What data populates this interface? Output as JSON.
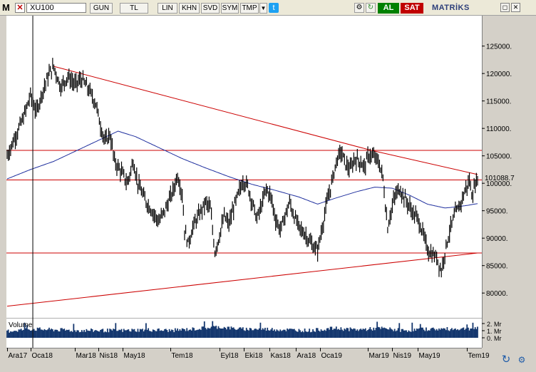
{
  "toolbar": {
    "menu_letter": "M",
    "close_glyph": "✕",
    "symbol": "XU100",
    "buttons": [
      "GUN",
      "TL",
      "LIN",
      "KHN",
      "SVD",
      "SYM",
      "TMP"
    ],
    "dropdown_glyph": "▼",
    "twitter_glyph": "t",
    "tool_glyphs": [
      "⚙",
      "↻",
      "📞"
    ],
    "buy_label": "AL",
    "sell_label": "SAT",
    "brand": "MATRİKS",
    "window_glyphs": [
      "◻",
      "✕"
    ]
  },
  "colors": {
    "background": "#ffffff",
    "price": "#000000",
    "moving_average": "#1f2f9e",
    "trendline": "#cc0000",
    "volume": "#14376e",
    "axis": "#d4d0c8"
  },
  "icons": {
    "refresh": "refresh-icon",
    "settings": "gear-icon"
  },
  "chart_data": {
    "type": "line",
    "price_axis": {
      "ticks": [
        "125000.",
        "120000.",
        "115000.",
        "110000.",
        "105000.",
        "100000.",
        "95000.",
        "90000.",
        "85000.",
        "80000."
      ],
      "tick_values": [
        125000,
        120000,
        115000,
        110000,
        105000,
        100000,
        95000,
        90000,
        85000,
        80000
      ],
      "ylim": [
        76000,
        129500
      ],
      "last_value_label": "101088.7",
      "last_value": 101088.7
    },
    "volume_axis": {
      "title": "Volume",
      "ticks": [
        "2. Mr",
        "1. Mr",
        "0. Mr"
      ],
      "tick_values": [
        2,
        1,
        0
      ],
      "ylim": [
        0,
        2.4
      ]
    },
    "x_axis": {
      "labels": [
        "Ara17",
        "Oca18",
        "Mar18",
        "Nis18",
        "May18",
        "Tem18",
        "Eyl18",
        "Eki18",
        "Kas18",
        "Ara18",
        "Oca19",
        "Mar19",
        "Nis19",
        "May19",
        "Tem19"
      ],
      "label_index": [
        0,
        20,
        58,
        78,
        99,
        140,
        182,
        203,
        225,
        247,
        268,
        309,
        330,
        352,
        394
      ],
      "total_bars": 404
    },
    "price_anchors": [
      [
        0,
        105000
      ],
      [
        3,
        106500
      ],
      [
        8,
        109000
      ],
      [
        14,
        112000
      ],
      [
        20,
        116000
      ],
      [
        25,
        113000
      ],
      [
        30,
        116500
      ],
      [
        36,
        120000
      ],
      [
        40,
        121200
      ],
      [
        46,
        117500
      ],
      [
        52,
        119500
      ],
      [
        58,
        118000
      ],
      [
        64,
        119000
      ],
      [
        70,
        117000
      ],
      [
        76,
        114500
      ],
      [
        80,
        110500
      ],
      [
        84,
        107500
      ],
      [
        88,
        109000
      ],
      [
        92,
        104000
      ],
      [
        98,
        102000
      ],
      [
        103,
        100000
      ],
      [
        108,
        104000
      ],
      [
        112,
        100000
      ],
      [
        118,
        97000
      ],
      [
        124,
        95000
      ],
      [
        130,
        93000
      ],
      [
        136,
        95500
      ],
      [
        142,
        98500
      ],
      [
        146,
        101500
      ],
      [
        150,
        98000
      ],
      [
        152,
        91500
      ],
      [
        155,
        89000
      ],
      [
        160,
        92500
      ],
      [
        165,
        94500
      ],
      [
        170,
        96500
      ],
      [
        174,
        95500
      ],
      [
        178,
        87500
      ],
      [
        182,
        90500
      ],
      [
        186,
        94000
      ],
      [
        190,
        92500
      ],
      [
        194,
        95500
      ],
      [
        198,
        98000
      ],
      [
        202,
        100500
      ],
      [
        206,
        99500
      ],
      [
        210,
        96500
      ],
      [
        214,
        93500
      ],
      [
        218,
        96000
      ],
      [
        222,
        99000
      ],
      [
        226,
        97500
      ],
      [
        230,
        93500
      ],
      [
        234,
        91500
      ],
      [
        238,
        94000
      ],
      [
        242,
        96500
      ],
      [
        245,
        94500
      ],
      [
        250,
        92000
      ],
      [
        256,
        90500
      ],
      [
        262,
        88500
      ],
      [
        266,
        87800
      ],
      [
        270,
        92000
      ],
      [
        274,
        96500
      ],
      [
        278,
        100000
      ],
      [
        282,
        104000
      ],
      [
        286,
        105800
      ],
      [
        290,
        103500
      ],
      [
        294,
        102500
      ],
      [
        298,
        104500
      ],
      [
        302,
        104000
      ],
      [
        306,
        103000
      ],
      [
        310,
        105200
      ],
      [
        314,
        104800
      ],
      [
        318,
        104000
      ],
      [
        322,
        101000
      ],
      [
        324,
        96000
      ],
      [
        326,
        92000
      ],
      [
        328,
        94000
      ],
      [
        332,
        97500
      ],
      [
        336,
        99000
      ],
      [
        340,
        97500
      ],
      [
        344,
        96000
      ],
      [
        348,
        94500
      ],
      [
        352,
        93500
      ],
      [
        356,
        91000
      ],
      [
        360,
        88000
      ],
      [
        364,
        87000
      ],
      [
        368,
        86500
      ],
      [
        372,
        84000
      ],
      [
        376,
        88500
      ],
      [
        380,
        92000
      ],
      [
        384,
        94500
      ],
      [
        388,
        96000
      ],
      [
        392,
        98500
      ],
      [
        396,
        100500
      ],
      [
        398,
        98000
      ],
      [
        400,
        99000
      ],
      [
        403,
        101088.7
      ]
    ],
    "moving_average_anchors": [
      [
        0,
        100800
      ],
      [
        20,
        102500
      ],
      [
        40,
        104000
      ],
      [
        60,
        106000
      ],
      [
        80,
        108000
      ],
      [
        95,
        109500
      ],
      [
        110,
        108500
      ],
      [
        130,
        106500
      ],
      [
        150,
        104500
      ],
      [
        170,
        102800
      ],
      [
        190,
        101200
      ],
      [
        210,
        99800
      ],
      [
        230,
        98700
      ],
      [
        250,
        97500
      ],
      [
        266,
        96200
      ],
      [
        280,
        97200
      ],
      [
        300,
        98500
      ],
      [
        315,
        99300
      ],
      [
        330,
        99100
      ],
      [
        345,
        97800
      ],
      [
        360,
        96200
      ],
      [
        375,
        95500
      ],
      [
        385,
        95700
      ],
      [
        395,
        96000
      ],
      [
        403,
        96300
      ]
    ],
    "horizontal_lines": [
      106000,
      100600,
      87300
    ],
    "trendlines": [
      {
        "from": [
          40,
          121300
        ],
        "to": [
          312,
          106000
        ]
      },
      {
        "from": [
          312,
          106000
        ],
        "to": [
          403,
          101600
        ]
      },
      {
        "from": [
          0,
          77600
        ],
        "to": [
          403,
          87300
        ]
      }
    ],
    "cursor_index": 22,
    "grid": false,
    "volume_profile": [
      [
        0,
        0.9
      ],
      [
        20,
        1.2
      ],
      [
        40,
        1.1
      ],
      [
        60,
        1.0
      ],
      [
        80,
        1.0
      ],
      [
        100,
        1.0
      ],
      [
        120,
        1.1
      ],
      [
        140,
        1.0
      ],
      [
        160,
        1.2
      ],
      [
        180,
        1.5
      ],
      [
        200,
        1.2
      ],
      [
        220,
        1.2
      ],
      [
        240,
        1.1
      ],
      [
        260,
        1.0
      ],
      [
        280,
        1.3
      ],
      [
        300,
        1.1
      ],
      [
        320,
        1.3
      ],
      [
        340,
        1.0
      ],
      [
        360,
        1.2
      ],
      [
        380,
        1.2
      ],
      [
        403,
        1.3
      ]
    ]
  }
}
